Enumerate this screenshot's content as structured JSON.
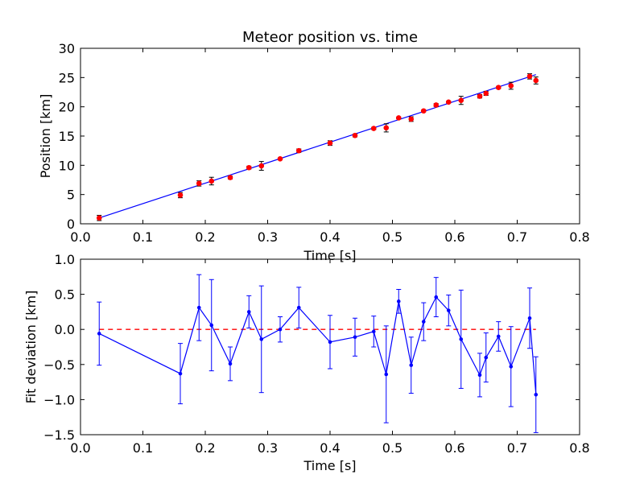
{
  "chart_data": [
    {
      "type": "scatter",
      "title": "Meteor position vs. time",
      "xlabel": "Time [s]",
      "ylabel": "Position [km]",
      "xlim": [
        0.0,
        0.8
      ],
      "ylim": [
        0,
        30
      ],
      "x_ticks": [
        "0.0",
        "0.1",
        "0.2",
        "0.3",
        "0.4",
        "0.5",
        "0.6",
        "0.7",
        "0.8"
      ],
      "y_ticks": [
        "0",
        "5",
        "10",
        "15",
        "20",
        "25",
        "30"
      ],
      "grid": false,
      "colors": {
        "points": "#ff0000",
        "fit": "#0000ff"
      },
      "series": [
        {
          "marker": "dot",
          "x": [
            0.03,
            0.16,
            0.19,
            0.21,
            0.24,
            0.27,
            0.29,
            0.32,
            0.35,
            0.4,
            0.44,
            0.47,
            0.49,
            0.51,
            0.53,
            0.55,
            0.57,
            0.59,
            0.61,
            0.64,
            0.65,
            0.67,
            0.69,
            0.72,
            0.73
          ],
          "y": [
            1.0,
            4.9,
            6.9,
            7.3,
            7.9,
            9.6,
            9.9,
            11.1,
            12.5,
            13.8,
            15.1,
            16.3,
            16.4,
            18.1,
            17.9,
            19.3,
            20.3,
            20.8,
            21.1,
            21.8,
            22.3,
            23.3,
            23.6,
            25.2,
            24.5
          ],
          "yerr": [
            0.45,
            0.45,
            0.45,
            0.65,
            0.25,
            0.25,
            0.75,
            0.15,
            0.3,
            0.4,
            0.25,
            0.2,
            0.7,
            0.15,
            0.4,
            0.15,
            0.25,
            0.15,
            0.7,
            0.3,
            0.35,
            0.2,
            0.6,
            0.45,
            0.6
          ]
        },
        {
          "marker": "line",
          "x": [
            0.03,
            0.73
          ],
          "y": [
            1.0,
            25.5
          ]
        }
      ]
    },
    {
      "type": "line",
      "title": "",
      "xlabel": "Time [s]",
      "ylabel": "Fit deviation [km]",
      "xlim": [
        0.0,
        0.8
      ],
      "ylim": [
        -1.5,
        1.0
      ],
      "x_ticks": [
        "0.0",
        "0.1",
        "0.2",
        "0.3",
        "0.4",
        "0.5",
        "0.6",
        "0.7",
        "0.8"
      ],
      "y_ticks": [
        "−1.5",
        "−1.0",
        "−0.5",
        "0.0",
        "0.5",
        "1.0"
      ],
      "grid": false,
      "colors": {
        "line": "#0000ff",
        "reference": "#ff0000"
      },
      "reference_line": {
        "y": 0.0,
        "x": [
          0.03,
          0.73
        ],
        "style": "dashed"
      },
      "series": [
        {
          "x": [
            0.03,
            0.16,
            0.19,
            0.21,
            0.24,
            0.27,
            0.29,
            0.32,
            0.35,
            0.4,
            0.44,
            0.47,
            0.49,
            0.51,
            0.53,
            0.55,
            0.57,
            0.59,
            0.61,
            0.64,
            0.65,
            0.67,
            0.69,
            0.72,
            0.73
          ],
          "y": [
            -0.06,
            -0.63,
            0.31,
            0.06,
            -0.49,
            0.25,
            -0.14,
            0.0,
            0.31,
            -0.18,
            -0.11,
            -0.03,
            -0.64,
            0.4,
            -0.51,
            0.11,
            0.46,
            0.27,
            -0.14,
            -0.65,
            -0.4,
            -0.1,
            -0.53,
            0.16,
            -0.93
          ],
          "yerr": [
            0.45,
            0.43,
            0.47,
            0.65,
            0.24,
            0.23,
            0.76,
            0.18,
            0.29,
            0.38,
            0.27,
            0.22,
            0.69,
            0.17,
            0.4,
            0.27,
            0.28,
            0.22,
            0.7,
            0.31,
            0.35,
            0.21,
            0.57,
            0.43,
            0.54
          ]
        }
      ]
    }
  ]
}
